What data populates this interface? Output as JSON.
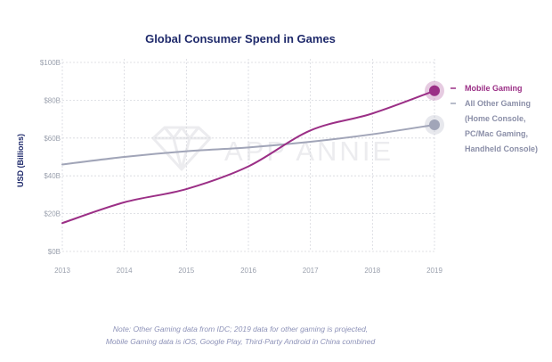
{
  "chart_data": {
    "type": "line",
    "title": "Global Consumer Spend in Games",
    "ylabel": "USD (Billions)",
    "xlabel": "",
    "x": [
      "2013",
      "2014",
      "2015",
      "2016",
      "2017",
      "2018",
      "2019"
    ],
    "ylim": [
      0,
      100
    ],
    "yticks": [
      "$0B",
      "$20B",
      "$40B",
      "$60B",
      "$80B",
      "$100B"
    ],
    "grid": "horizontal dotted",
    "legend": "right",
    "watermark": "APP ANNIE",
    "series": [
      {
        "name": "Mobile Gaming",
        "color": "#9b2f86",
        "values": [
          15,
          26,
          33,
          45,
          64,
          73,
          85
        ]
      },
      {
        "name": "All Other Gaming (Home Console, PC/Mac Gaming, Handheld Console)",
        "legend_lines": [
          "All Other Gaming",
          "(Home Console,",
          "PC/Mac Gaming,",
          "Handheld Console)"
        ],
        "color": "#a1a5b8",
        "values": [
          46,
          50,
          53,
          55,
          58,
          62,
          67
        ]
      }
    ]
  },
  "note": {
    "line1": "Note: Other Gaming data from IDC; 2019 data for other gaming is projected,",
    "line2": "Mobile Gaming data is iOS, Google Play, Third-Party Android in China combined"
  }
}
